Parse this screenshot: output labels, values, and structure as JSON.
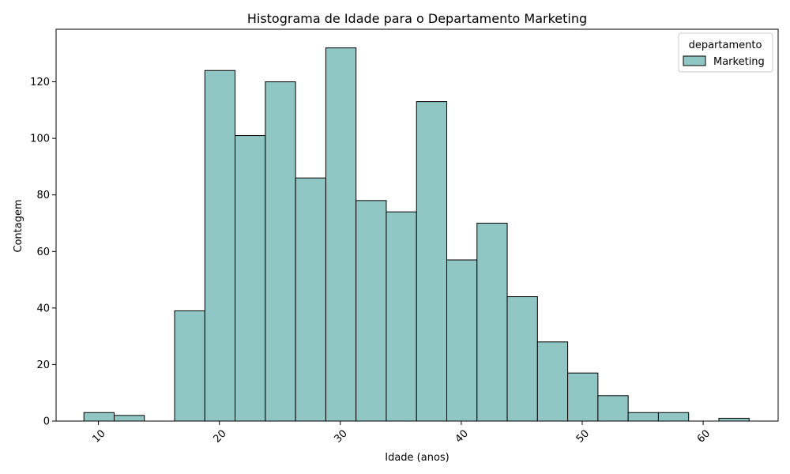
{
  "chart_data": {
    "type": "bar",
    "title": "Histograma de Idade para o Departamento Marketing",
    "xlabel": "Idade (anos)",
    "ylabel": "Contagem",
    "bin_edges": [
      8.8,
      11.3,
      13.8,
      16.3,
      18.8,
      21.3,
      23.8,
      26.3,
      28.8,
      31.3,
      33.8,
      36.3,
      38.8,
      41.3,
      43.8,
      46.3,
      48.8,
      51.3,
      53.8,
      56.3,
      58.8,
      61.3,
      63.8
    ],
    "values": [
      3,
      2,
      0,
      39,
      124,
      101,
      120,
      86,
      132,
      78,
      74,
      113,
      57,
      70,
      44,
      28,
      17,
      9,
      3,
      3,
      0,
      1
    ],
    "xlim": [
      6.5,
      66.2
    ],
    "ylim": [
      0,
      138.6
    ],
    "xticks": [
      10,
      20,
      30,
      40,
      50,
      60
    ],
    "xtick_rotation": 45,
    "yticks": [
      0,
      20,
      40,
      60,
      80,
      100,
      120
    ],
    "grid": false,
    "bar_color": "#90c7c5",
    "edge_color": "#000000",
    "legend": {
      "title": "departamento",
      "entries": [
        {
          "name": "Marketing",
          "color": "#90c7c5"
        }
      ],
      "placement": "top-right"
    }
  }
}
